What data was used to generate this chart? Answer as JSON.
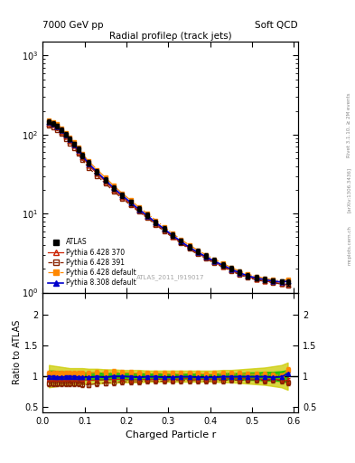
{
  "title_left": "7000 GeV pp",
  "title_right": "Soft QCD",
  "main_title": "Radial profileρ (track jets)",
  "xlabel": "Charged Particle r",
  "ylabel_ratio": "Ratio to ATLAS",
  "watermark": "ATLAS_2011_I919017",
  "rivet_label": "Rivet 3.1.10, ≥ 2M events",
  "arxiv_label": "[arXiv:1306.3436]",
  "mcplots_label": "mcplots.cern.ch",
  "xlim": [
    0.0,
    0.61
  ],
  "ylim_main": [
    1.0,
    1500.0
  ],
  "ylim_ratio": [
    0.42,
    2.35
  ],
  "r_values": [
    0.015,
    0.025,
    0.035,
    0.045,
    0.055,
    0.065,
    0.075,
    0.085,
    0.095,
    0.11,
    0.13,
    0.15,
    0.17,
    0.19,
    0.21,
    0.23,
    0.25,
    0.27,
    0.29,
    0.31,
    0.33,
    0.35,
    0.37,
    0.39,
    0.41,
    0.43,
    0.45,
    0.47,
    0.49,
    0.51,
    0.53,
    0.55,
    0.57,
    0.585
  ],
  "atlas_y": [
    145,
    138,
    128,
    115,
    100,
    88,
    76,
    65,
    55,
    44,
    34,
    27,
    21,
    17,
    14,
    11.5,
    9.5,
    7.8,
    6.5,
    5.4,
    4.5,
    3.8,
    3.3,
    2.9,
    2.55,
    2.25,
    2.0,
    1.8,
    1.65,
    1.55,
    1.48,
    1.42,
    1.38,
    1.35
  ],
  "atlas_yerr": [
    10,
    9,
    8,
    7,
    6.5,
    6,
    5.5,
    5,
    4.5,
    3.5,
    2.8,
    2.2,
    1.8,
    1.4,
    1.1,
    0.9,
    0.75,
    0.6,
    0.5,
    0.42,
    0.36,
    0.3,
    0.26,
    0.23,
    0.2,
    0.18,
    0.16,
    0.14,
    0.13,
    0.12,
    0.11,
    0.1,
    0.1,
    0.12
  ],
  "p6_370_y": [
    138,
    132,
    122,
    109,
    95,
    83,
    72,
    61,
    52,
    41,
    32,
    25.5,
    20,
    16.2,
    13.2,
    10.8,
    9.0,
    7.4,
    6.2,
    5.1,
    4.3,
    3.65,
    3.15,
    2.75,
    2.42,
    2.15,
    1.92,
    1.72,
    1.58,
    1.48,
    1.4,
    1.35,
    1.3,
    1.25
  ],
  "p6_391_y": [
    128,
    122,
    113,
    101,
    88,
    77,
    67,
    57,
    48,
    38,
    30,
    24,
    19,
    15.5,
    12.8,
    10.5,
    8.8,
    7.2,
    6.0,
    5.0,
    4.2,
    3.55,
    3.05,
    2.68,
    2.36,
    2.1,
    1.88,
    1.68,
    1.55,
    1.45,
    1.38,
    1.33,
    1.28,
    1.22
  ],
  "p6_def_y": [
    152,
    145,
    135,
    121,
    105,
    92,
    80,
    68,
    57,
    46,
    36,
    28.5,
    22.5,
    18,
    14.8,
    12.0,
    10.0,
    8.2,
    6.8,
    5.6,
    4.7,
    4.0,
    3.45,
    3.0,
    2.65,
    2.34,
    2.08,
    1.87,
    1.7,
    1.6,
    1.52,
    1.45,
    1.4,
    1.48
  ],
  "p8_def_y": [
    143,
    136,
    126,
    113,
    99,
    87,
    75,
    64,
    54,
    43,
    33.5,
    26.5,
    21,
    17,
    13.8,
    11.3,
    9.4,
    7.7,
    6.4,
    5.3,
    4.45,
    3.75,
    3.25,
    2.84,
    2.5,
    2.22,
    1.98,
    1.78,
    1.63,
    1.53,
    1.46,
    1.4,
    1.36,
    1.4
  ],
  "band_yellow_lo": [
    0.82,
    0.83,
    0.84,
    0.85,
    0.86,
    0.87,
    0.87,
    0.87,
    0.87,
    0.88,
    0.88,
    0.89,
    0.89,
    0.9,
    0.9,
    0.9,
    0.91,
    0.91,
    0.91,
    0.91,
    0.91,
    0.91,
    0.91,
    0.91,
    0.91,
    0.9,
    0.9,
    0.89,
    0.88,
    0.87,
    0.86,
    0.84,
    0.82,
    0.78
  ],
  "band_yellow_hi": [
    1.18,
    1.17,
    1.16,
    1.15,
    1.14,
    1.13,
    1.13,
    1.13,
    1.13,
    1.12,
    1.12,
    1.11,
    1.11,
    1.1,
    1.1,
    1.1,
    1.09,
    1.09,
    1.09,
    1.09,
    1.09,
    1.09,
    1.09,
    1.09,
    1.09,
    1.1,
    1.1,
    1.11,
    1.12,
    1.13,
    1.14,
    1.16,
    1.18,
    1.22
  ],
  "band_green_lo": [
    0.91,
    0.91,
    0.92,
    0.92,
    0.93,
    0.93,
    0.93,
    0.93,
    0.94,
    0.94,
    0.94,
    0.95,
    0.95,
    0.95,
    0.95,
    0.95,
    0.96,
    0.96,
    0.96,
    0.96,
    0.96,
    0.96,
    0.96,
    0.96,
    0.96,
    0.95,
    0.95,
    0.95,
    0.94,
    0.94,
    0.93,
    0.93,
    0.92,
    0.9
  ],
  "band_green_hi": [
    1.09,
    1.09,
    1.08,
    1.08,
    1.07,
    1.07,
    1.07,
    1.07,
    1.06,
    1.06,
    1.06,
    1.05,
    1.05,
    1.05,
    1.05,
    1.05,
    1.04,
    1.04,
    1.04,
    1.04,
    1.04,
    1.04,
    1.04,
    1.04,
    1.04,
    1.05,
    1.05,
    1.05,
    1.06,
    1.06,
    1.07,
    1.07,
    1.08,
    1.1
  ],
  "p6_370_ratio": [
    0.95,
    0.96,
    0.95,
    0.95,
    0.95,
    0.94,
    0.95,
    0.94,
    0.95,
    0.93,
    0.94,
    0.94,
    0.95,
    0.95,
    0.94,
    0.94,
    0.95,
    0.95,
    0.95,
    0.94,
    0.96,
    0.96,
    0.95,
    0.95,
    0.95,
    0.96,
    0.96,
    0.96,
    0.96,
    0.95,
    0.95,
    0.95,
    0.94,
    0.93
  ],
  "p6_391_ratio": [
    0.88,
    0.88,
    0.88,
    0.88,
    0.88,
    0.88,
    0.88,
    0.88,
    0.87,
    0.86,
    0.88,
    0.89,
    0.9,
    0.91,
    0.91,
    0.91,
    0.93,
    0.92,
    0.92,
    0.93,
    0.93,
    0.93,
    0.93,
    0.92,
    0.93,
    0.93,
    0.94,
    0.93,
    0.94,
    0.94,
    0.93,
    0.94,
    0.93,
    0.9
  ],
  "p6_def_ratio": [
    1.05,
    1.05,
    1.05,
    1.05,
    1.05,
    1.05,
    1.05,
    1.05,
    1.04,
    1.05,
    1.06,
    1.06,
    1.07,
    1.06,
    1.06,
    1.04,
    1.05,
    1.05,
    1.05,
    1.04,
    1.04,
    1.05,
    1.05,
    1.03,
    1.04,
    1.04,
    1.04,
    1.04,
    1.03,
    1.03,
    1.03,
    1.02,
    1.01,
    1.1
  ],
  "p8_def_ratio": [
    0.99,
    0.99,
    0.98,
    0.98,
    0.99,
    0.99,
    0.99,
    0.98,
    0.98,
    0.98,
    0.99,
    0.98,
    1.0,
    1.0,
    0.99,
    0.98,
    0.99,
    0.99,
    0.98,
    0.98,
    0.99,
    0.99,
    0.98,
    0.98,
    0.98,
    0.99,
    0.99,
    0.99,
    0.99,
    0.99,
    0.99,
    0.98,
    0.99,
    1.04
  ],
  "color_atlas": "#000000",
  "color_p6_370": "#cc2200",
  "color_p6_391": "#882200",
  "color_p6_def": "#ff8800",
  "color_p8_def": "#0000cc",
  "color_green_band": "#00bb00",
  "color_yellow_band": "#cccc00",
  "bg_color": "#ffffff"
}
